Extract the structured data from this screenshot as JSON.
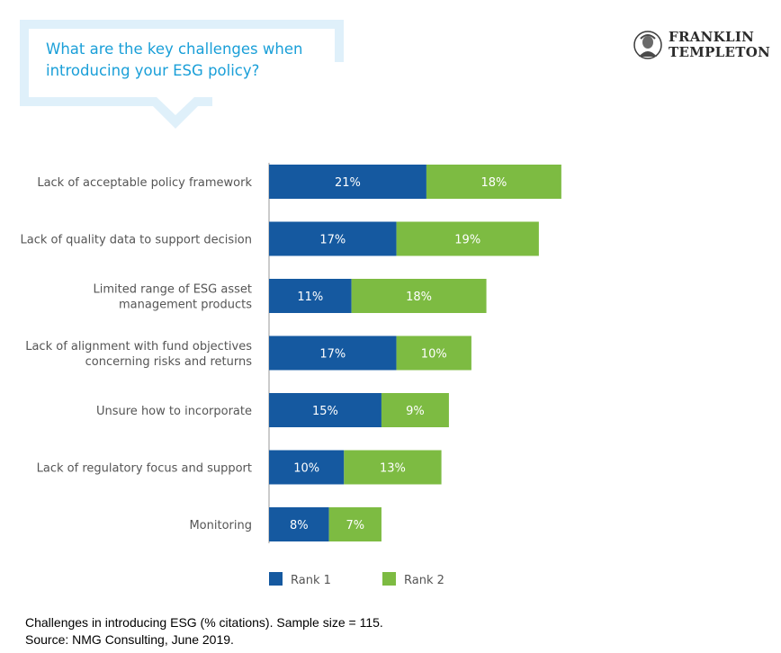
{
  "header": {
    "title_line1": "What are the key challenges when",
    "title_line2": "introducing your ESG policy?"
  },
  "logo": {
    "line1": "FRANKLIN",
    "line2": "TEMPLETON",
    "icon": "franklin-portrait-icon"
  },
  "colors": {
    "rank1": "#1559a0",
    "rank2": "#7dbb42",
    "title": "#1a9fd8",
    "bubble": "#dff0fa",
    "label": "#555555"
  },
  "chart_data": {
    "type": "bar",
    "orientation": "horizontal",
    "stacked": true,
    "categories": [
      [
        "Lack of acceptable policy framework"
      ],
      [
        "Lack of quality data to support decision"
      ],
      [
        "Limited range of ESG asset",
        "management products"
      ],
      [
        "Lack of alignment with fund objectives",
        "concerning risks and returns"
      ],
      [
        "Unsure how to incorporate"
      ],
      [
        "Lack of regulatory focus and support"
      ],
      [
        "Monitoring"
      ]
    ],
    "series": [
      {
        "name": "Rank 1",
        "values": [
          21,
          17,
          11,
          17,
          15,
          10,
          8
        ],
        "labels": [
          "21%",
          "17%",
          "11%",
          "17%",
          "15%",
          "10%",
          "8%"
        ]
      },
      {
        "name": "Rank 2",
        "values": [
          18,
          19,
          18,
          10,
          9,
          13,
          7
        ],
        "labels": [
          "18%",
          "19%",
          "18%",
          "10%",
          "9%",
          "13%",
          "7%"
        ]
      }
    ],
    "xlim": [
      0,
      40
    ],
    "legend_position": "bottom-left",
    "grid": false
  },
  "footnote": {
    "line1": "Challenges in introducing ESG (% citations). Sample size = 115.",
    "line2": "Source: NMG Consulting, June 2019."
  }
}
